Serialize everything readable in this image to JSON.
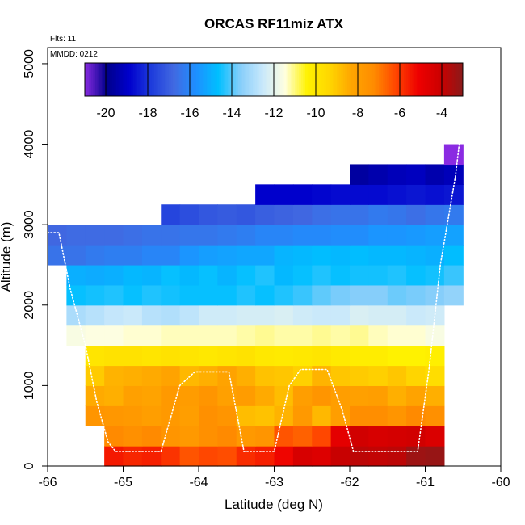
{
  "chart_data": {
    "type": "heatmap",
    "title": "ORCAS RF11miz ATX",
    "xlabel": "Latitude (deg N)",
    "ylabel": "Altitude (m)",
    "xlim": [
      -66,
      -60
    ],
    "ylim": [
      0,
      5200
    ],
    "x_ticks": [
      -66,
      -65,
      -64,
      -63,
      -62,
      -61,
      -60
    ],
    "y_ticks": [
      0,
      1000,
      2000,
      3000,
      4000,
      5000
    ],
    "x_tick_labels": [
      "-66",
      "-65",
      "-64",
      "-63",
      "-62",
      "-61",
      "-60"
    ],
    "y_tick_labels": [
      "0",
      "1000",
      "2000",
      "3000",
      "4000",
      "5000"
    ],
    "annotations": {
      "flights": "Flts: 11",
      "date": "MMDD: 0212"
    },
    "colorbar": {
      "range": [
        -21,
        -3
      ],
      "ticks": [
        -20,
        -18,
        -16,
        -14,
        -12,
        -10,
        -8,
        -6,
        -4
      ],
      "tick_labels": [
        "-20",
        "-18",
        "-16",
        "-14",
        "-12",
        "-10",
        "-8",
        "-6",
        "-4"
      ],
      "palette": [
        "#8a2be2",
        "#00008b",
        "#0000cd",
        "#1e3cdc",
        "#4169e1",
        "#1e90ff",
        "#00bfff",
        "#87cefa",
        "#c8e8fb",
        "#ffffe0",
        "#fff200",
        "#ffd700",
        "#ffa500",
        "#ff8c00",
        "#ff4500",
        "#ee0000",
        "#cc0000",
        "#8b1a1a"
      ]
    },
    "cell_lat_width": 0.25,
    "cell_alt_height": 250,
    "rows": [
      {
        "alt": 0,
        "lat0": -65.25,
        "values": [
          -5.5,
          -5.7,
          -5.6,
          -5.9,
          -6.4,
          -6.2,
          -6.3,
          -5.8,
          -5.6,
          -5.2,
          -4.4,
          -4.6,
          -4.0,
          -3.8,
          -3.9,
          -3.8,
          -3.3,
          -3.2
        ]
      },
      {
        "alt": 250,
        "lat0": -65.25,
        "values": [
          -7.2,
          -7.4,
          -7.2,
          -7.6,
          -7.8,
          -7.4,
          -7.2,
          -7.8,
          -7.6,
          -6.4,
          -6.6,
          -6.2,
          -4.8,
          -4.2,
          -4.4,
          -4.3,
          -4.2,
          -4.5
        ]
      },
      {
        "alt": 500,
        "lat0": -65.5,
        "values": [
          -7.6,
          -7.7,
          -7.8,
          -8.0,
          -7.8,
          -8.0,
          -7.4,
          -7.6,
          -8.8,
          -8.9,
          -8.6,
          -7.8,
          -8.7,
          -8.0,
          -7.3,
          -7.3,
          -7.6,
          -7.2,
          -7.4
        ]
      },
      {
        "alt": 750,
        "lat0": -65.5,
        "values": [
          -8.4,
          -8.5,
          -8.1,
          -8.2,
          -7.8,
          -7.9,
          -7.6,
          -8.1,
          -7.9,
          -8.4,
          -8.8,
          -8.0,
          -7.6,
          -8.0,
          -8.1,
          -8.0,
          -8.5,
          -8.2,
          -8.5
        ]
      },
      {
        "alt": 1000,
        "lat0": -65.5,
        "values": [
          -9.1,
          -8.6,
          -8.5,
          -8.4,
          -8.2,
          -8.7,
          -8.5,
          -8.2,
          -8.5,
          -8.9,
          -9.0,
          -9.2,
          -8.6,
          -9.0,
          -9.1,
          -9.2,
          -9.0,
          -9.3,
          -9.6
        ]
      },
      {
        "alt": 1250,
        "lat0": -65.5,
        "values": [
          -9.9,
          -9.8,
          -9.8,
          -9.9,
          -9.8,
          -9.9,
          -10.0,
          -9.9,
          -9.8,
          -10.0,
          -10.1,
          -10.0,
          -9.9,
          -10.1,
          -10.2,
          -10.2,
          -10.4,
          -10.4,
          -10.3
        ]
      },
      {
        "alt": 1500,
        "lat0": -65.75,
        "values": [
          -11.6,
          -11.5,
          -11.5,
          -11.4,
          -11.4,
          -11.3,
          -11.3,
          -11.3,
          -11.3,
          -11.2,
          -11.1,
          -11.2,
          -11.2,
          -11.1,
          -11.2,
          -11.1,
          -11.3,
          -11.4,
          -11.4,
          -11.6
        ]
      },
      {
        "alt": 1750,
        "lat0": -65.75,
        "values": [
          -13.0,
          -12.8,
          -12.6,
          -12.5,
          -12.8,
          -12.9,
          -12.7,
          -12.4,
          -12.4,
          -12.3,
          -12.3,
          -12.2,
          -12.4,
          -12.5,
          -12.5,
          -12.2,
          -12.3,
          -12.3,
          -12.5,
          -12.4
        ]
      },
      {
        "alt": 2000,
        "lat0": -65.75,
        "values": [
          -14.6,
          -14.5,
          -14.4,
          -14.6,
          -14.4,
          -14.5,
          -14.6,
          -14.6,
          -14.6,
          -14.4,
          -14.6,
          -14.4,
          -14.2,
          -13.9,
          -13.7,
          -13.6,
          -13.6,
          -13.8,
          -13.7,
          -13.6,
          -13.4
        ]
      },
      {
        "alt": 2250,
        "lat0": -65.75,
        "values": [
          -15.0,
          -15.1,
          -15.0,
          -14.8,
          -14.9,
          -14.6,
          -14.8,
          -14.6,
          -14.9,
          -14.6,
          -14.4,
          -14.8,
          -14.6,
          -14.4,
          -14.6,
          -14.5,
          -14.5,
          -14.4,
          -14.6,
          -14.5,
          -14.2
        ]
      },
      {
        "alt": 2500,
        "lat0": -66.0,
        "values": [
          -16.5,
          -16.5,
          -16.3,
          -16.2,
          -16.2,
          -16.0,
          -16.0,
          -15.6,
          -15.4,
          -15.3,
          -15.2,
          -15.2,
          -14.9,
          -14.8,
          -14.7,
          -14.8,
          -14.7,
          -14.8,
          -14.8,
          -14.9,
          -15.0,
          -14.7
        ]
      },
      {
        "alt": 2750,
        "lat0": -66.0,
        "values": [
          -16.8,
          -16.7,
          -16.7,
          -16.7,
          -16.6,
          -16.5,
          -16.5,
          -16.4,
          -16.4,
          -16.3,
          -16.2,
          -16.0,
          -16.0,
          -15.9,
          -15.9,
          -15.8,
          -15.8,
          -15.6,
          -15.6,
          -15.5,
          -15.4,
          -15.3
        ]
      },
      {
        "alt": 3000,
        "lat0": -64.5,
        "values": [
          -17.6,
          -17.4,
          -17.2,
          -17.1,
          -17.2,
          -17.0,
          -16.9,
          -16.8,
          -16.6,
          -16.5,
          -16.5,
          -16.3,
          -16.4,
          -16.6,
          -16.4,
          -16.3
        ]
      },
      {
        "alt": 3250,
        "lat0": -63.25,
        "values": [
          -18.9,
          -18.9,
          -18.9,
          -18.8,
          -18.7,
          -18.7,
          -18.7,
          -18.6,
          -18.5,
          -18.6,
          -18.5
        ]
      },
      {
        "alt": 3500,
        "lat0": -62.0,
        "values": [
          -19.6,
          -19.4,
          -19.2,
          -19.1,
          -19.4,
          -19.2
        ]
      },
      {
        "alt": 3750,
        "lat0": -60.75,
        "values": [
          -21.0
        ]
      }
    ],
    "flight_track": {
      "lat": [
        -66.0,
        -65.85,
        -65.7,
        -65.5,
        -65.35,
        -65.2,
        -65.1,
        -64.5,
        -64.25,
        -64.05,
        -63.6,
        -63.4,
        -63.0,
        -62.8,
        -62.65,
        -62.3,
        -62.1,
        -61.95,
        -61.5,
        -61.1,
        -60.95,
        -60.8,
        -60.6,
        -60.55
      ],
      "alt": [
        2900,
        2900,
        2200,
        1500,
        800,
        300,
        180,
        180,
        1000,
        1170,
        1170,
        180,
        180,
        1000,
        1200,
        1200,
        700,
        180,
        180,
        180,
        1200,
        2500,
        3600,
        4000
      ]
    }
  }
}
